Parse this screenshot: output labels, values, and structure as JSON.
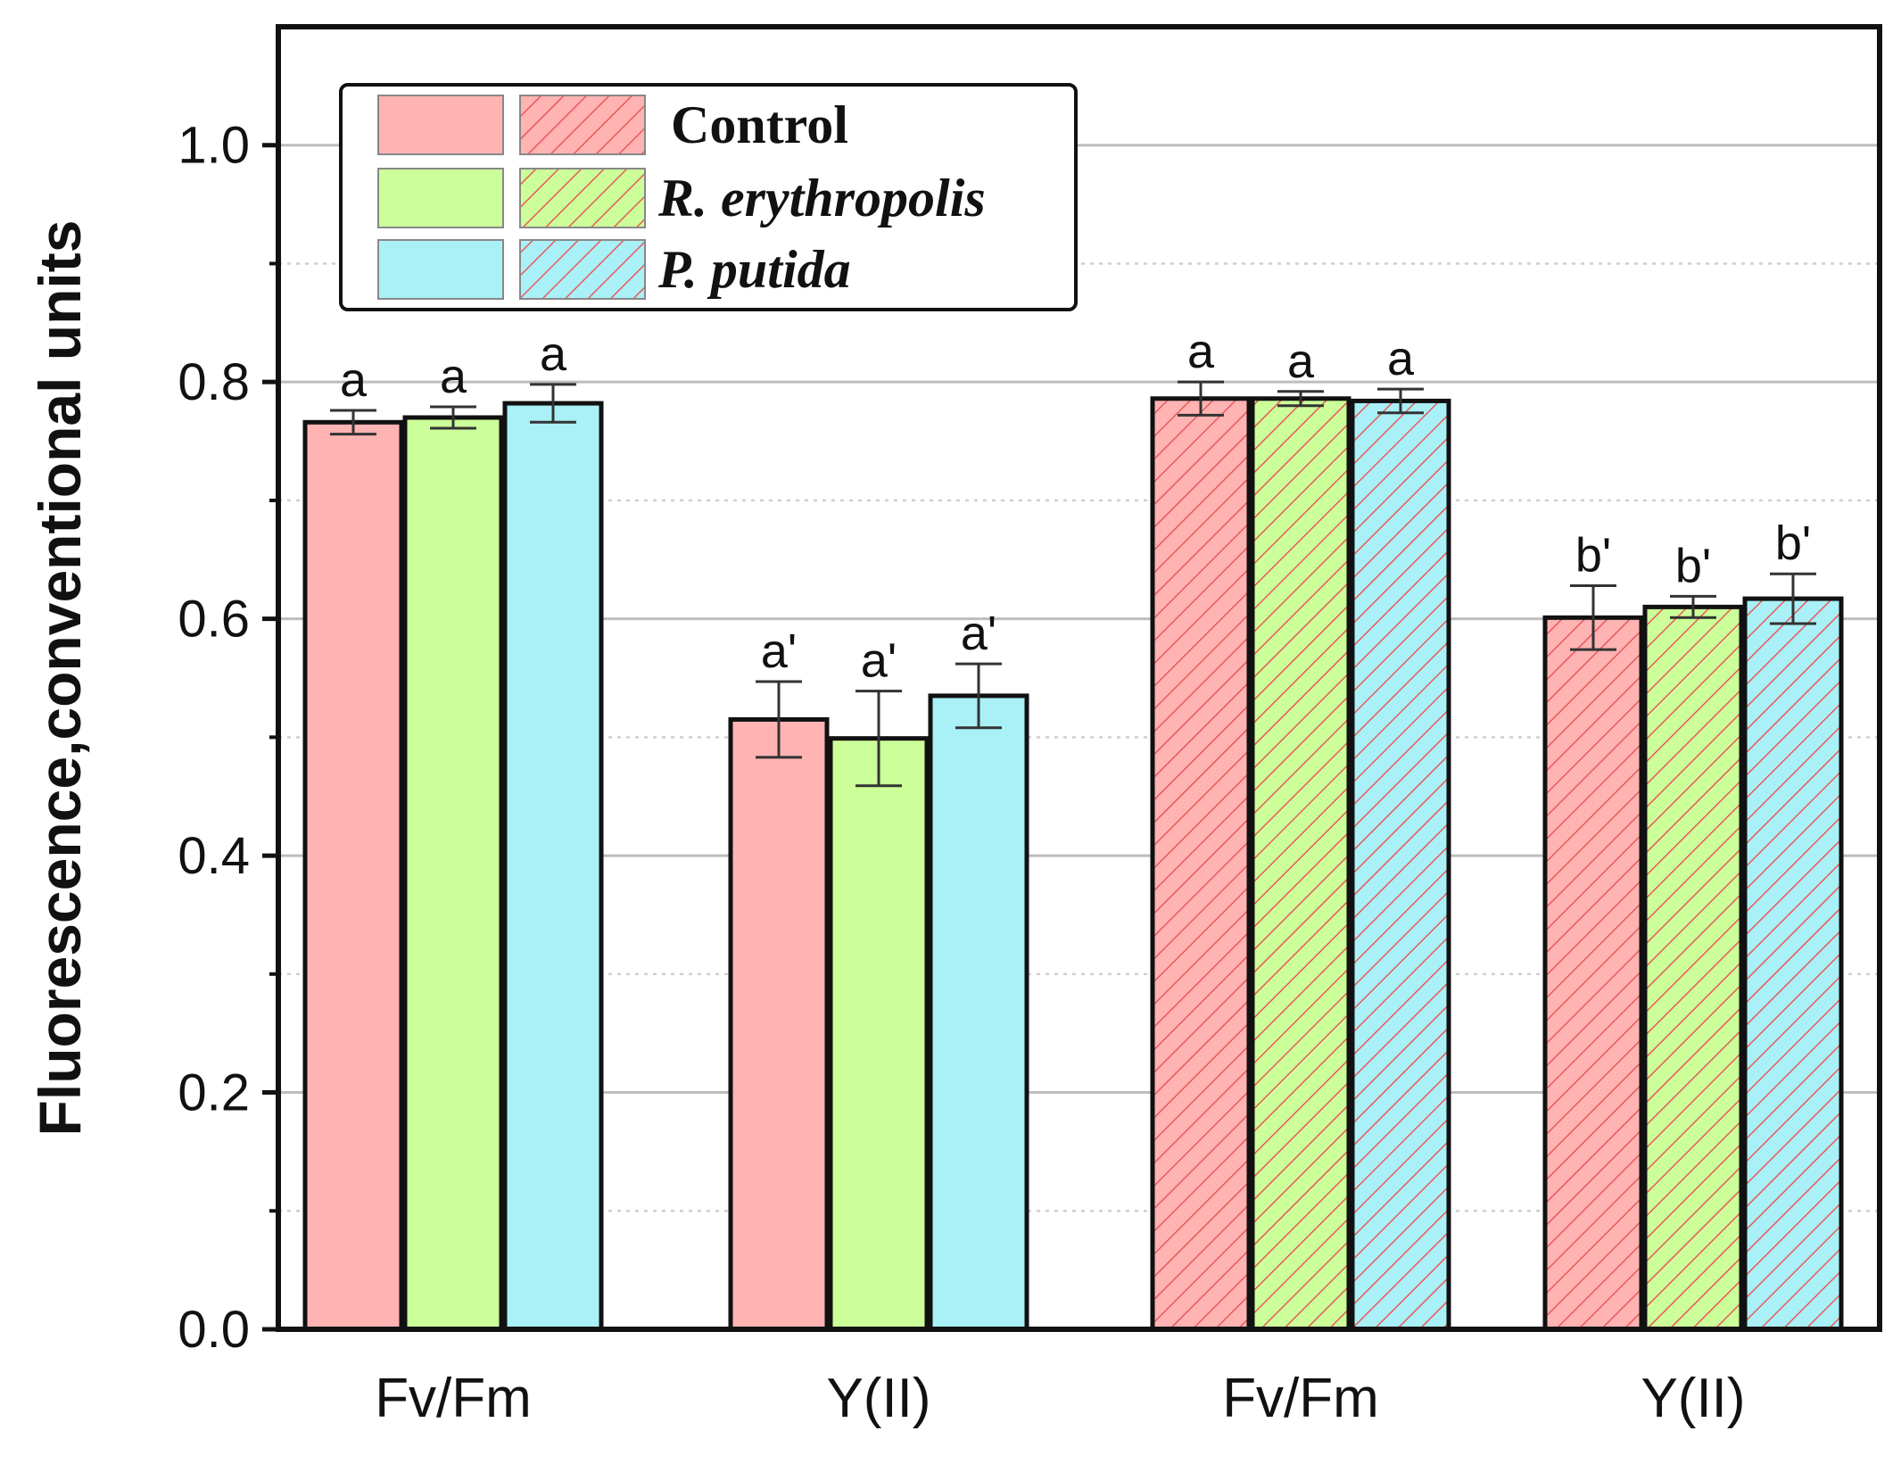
{
  "chart_data": {
    "type": "bar",
    "ylabel": "Fluorescence,conventional units",
    "xlabel": "",
    "ylim": [
      0,
      1.1
    ],
    "yticks": [
      0.0,
      0.2,
      0.4,
      0.6,
      0.8,
      1.0
    ],
    "ytick_labels": [
      "0.0",
      "0.2",
      "0.4",
      "0.6",
      "0.8",
      "1.0"
    ],
    "minor_yticks": [
      0.1,
      0.3,
      0.5,
      0.7,
      0.9
    ],
    "grid": true,
    "legend_position": "top-left",
    "series_names": [
      "Control",
      "R. erythropolis",
      "P. putida"
    ],
    "series_colors": [
      "#ffb3b3",
      "#ccff99",
      "#aaf0f7"
    ],
    "hatch_color": "#e85a5a",
    "groups": [
      {
        "label": "Fv/Fm",
        "pattern": "solid",
        "values": [
          0.766,
          0.77,
          0.782
        ],
        "errors": [
          0.01,
          0.009,
          0.016
        ],
        "letters": [
          "a",
          "a",
          "a"
        ]
      },
      {
        "label": "Y(II)",
        "pattern": "solid",
        "values": [
          0.515,
          0.499,
          0.535
        ],
        "errors": [
          0.032,
          0.04,
          0.027
        ],
        "letters": [
          "a'",
          "a'",
          "a'"
        ]
      },
      {
        "label": "Fv/Fm",
        "pattern": "hatched",
        "values": [
          0.786,
          0.786,
          0.784
        ],
        "errors": [
          0.014,
          0.006,
          0.01
        ],
        "letters": [
          "a",
          "a",
          "a"
        ]
      },
      {
        "label": "Y(II)",
        "pattern": "hatched",
        "values": [
          0.601,
          0.61,
          0.617
        ],
        "errors": [
          0.027,
          0.009,
          0.021
        ],
        "letters": [
          "b'",
          "b'",
          "b'"
        ]
      }
    ],
    "legend": [
      {
        "label": "Control",
        "italic": false
      },
      {
        "label": "R. erythropolis",
        "italic": true
      },
      {
        "label": "P. putida",
        "italic": true
      }
    ]
  }
}
